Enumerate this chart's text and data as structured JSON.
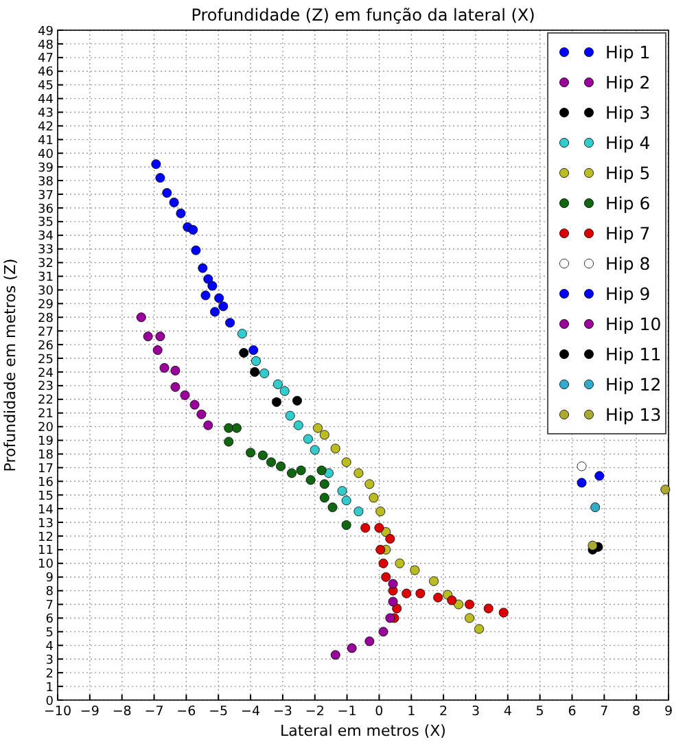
{
  "chart_data": {
    "type": "scatter",
    "title": "Profundidade (Z) em função da lateral (X)",
    "xlabel": "Lateral em metros (X)",
    "ylabel": "Profundidade em metros (Z)",
    "xlim": [
      -10,
      9
    ],
    "ylim": [
      0,
      49
    ],
    "xticks": [
      -10,
      -9,
      -8,
      -7,
      -6,
      -5,
      -4,
      -3,
      -2,
      -1,
      0,
      1,
      2,
      3,
      4,
      5,
      6,
      7,
      8,
      9
    ],
    "yticks": [
      0,
      1,
      2,
      3,
      4,
      5,
      6,
      7,
      8,
      9,
      10,
      11,
      12,
      13,
      14,
      15,
      16,
      17,
      18,
      19,
      20,
      21,
      22,
      23,
      24,
      25,
      26,
      27,
      28,
      29,
      30,
      31,
      32,
      33,
      34,
      35,
      36,
      37,
      38,
      39,
      40,
      41,
      42,
      43,
      44,
      45,
      46,
      47,
      48,
      49
    ],
    "grid": true,
    "legend": "top right",
    "marker": "circle",
    "series": [
      {
        "name": "Hip 1",
        "color": "#0000ff",
        "x": [
          -6.94,
          -6.81,
          -6.6,
          -6.38,
          -6.17,
          -5.96,
          -5.79,
          -5.7,
          -5.49,
          -5.32,
          -5.19,
          -5.4,
          -4.98,
          -5.11,
          -4.85,
          -4.64,
          -3.91
        ],
        "values": [
          39.2,
          38.2,
          37.1,
          36.4,
          35.6,
          34.6,
          34.4,
          32.9,
          31.6,
          30.8,
          30.3,
          29.6,
          29.4,
          28.4,
          28.8,
          27.6,
          25.6
        ]
      },
      {
        "name": "Hip 2",
        "color": "#990099",
        "x": [
          -7.4,
          -7.19,
          -6.81,
          -6.89,
          -6.68,
          -6.34,
          -6.34,
          -6.04,
          -5.74,
          -5.53,
          -5.32
        ],
        "values": [
          28.0,
          26.6,
          26.6,
          25.6,
          24.3,
          24.1,
          22.9,
          22.3,
          21.6,
          20.9,
          20.1
        ]
      },
      {
        "name": "Hip 3",
        "color": "#000000",
        "x": [
          -4.21,
          -3.87,
          -3.19,
          -2.55
        ],
        "values": [
          25.4,
          24.0,
          21.8,
          21.9
        ]
      },
      {
        "name": "Hip 4",
        "color": "#33cccc",
        "x": [
          -4.26,
          -3.83,
          -3.57,
          -3.15,
          -2.94,
          -2.77,
          -2.51,
          -2.21,
          -2.0,
          -1.57,
          -1.15,
          -1.02,
          -0.64
        ],
        "values": [
          26.8,
          24.8,
          23.9,
          23.1,
          22.6,
          20.8,
          20.1,
          19.1,
          18.3,
          16.6,
          15.3,
          14.6,
          13.8
        ]
      },
      {
        "name": "Hip 5",
        "color": "#bbbb22",
        "x": [
          -1.91,
          -1.7,
          -1.36,
          -1.02,
          -0.64,
          -0.3,
          -0.17,
          0.04,
          0.21,
          0.21,
          0.64,
          1.11,
          1.7,
          2.13,
          2.47,
          2.81,
          3.11
        ],
        "values": [
          19.9,
          19.4,
          18.4,
          17.4,
          16.6,
          15.8,
          14.8,
          13.8,
          12.3,
          11.0,
          10.0,
          9.5,
          8.7,
          7.7,
          7.0,
          6.0,
          5.2
        ]
      },
      {
        "name": "Hip 6",
        "color": "#116611",
        "x": [
          -4.68,
          -4.68,
          -4.43,
          -4.0,
          -3.62,
          -3.36,
          -3.06,
          -2.72,
          -2.43,
          -2.13,
          -1.79,
          -1.7,
          -1.7,
          -1.45,
          -1.02
        ],
        "values": [
          19.9,
          18.9,
          19.9,
          18.1,
          17.9,
          17.4,
          17.1,
          16.6,
          16.8,
          16.1,
          16.8,
          15.8,
          14.8,
          14.1,
          12.8
        ]
      },
      {
        "name": "Hip 7",
        "color": "#dd0000",
        "x": [
          -0.43,
          0,
          0.34,
          0.04,
          0.13,
          0.21,
          0.43,
          0.85,
          1.28,
          1.83,
          2.26,
          2.81,
          3.4,
          3.87,
          0.55,
          0.47
        ],
        "values": [
          12.6,
          12.6,
          11.8,
          11.0,
          10.0,
          9.0,
          8.0,
          7.8,
          7.8,
          7.5,
          7.3,
          7.0,
          6.7,
          6.4,
          6.7,
          6.0
        ]
      },
      {
        "name": "Hip 8",
        "color": "#ffffff",
        "x": [
          6.3
        ],
        "values": [
          17.1
        ]
      },
      {
        "name": "Hip 9",
        "color": "#0000ff",
        "x": [
          6.3,
          6.85
        ],
        "values": [
          15.9,
          16.4
        ]
      },
      {
        "name": "Hip 10",
        "color": "#990099",
        "x": [
          -1.36,
          -0.85,
          -0.3,
          0.13,
          0.34,
          0.43,
          0.43
        ],
        "values": [
          3.3,
          3.8,
          4.3,
          5.0,
          6.0,
          7.2,
          8.5
        ]
      },
      {
        "name": "Hip 11",
        "color": "#000000",
        "x": [
          6.81,
          6.64
        ],
        "values": [
          11.2,
          11.0
        ]
      },
      {
        "name": "Hip 12",
        "color": "#33aacc",
        "x": [
          6.72
        ],
        "values": [
          14.1
        ]
      },
      {
        "name": "Hip 13",
        "color": "#aaaa33",
        "x": [
          8.9,
          6.64
        ],
        "values": [
          15.4,
          11.3
        ]
      }
    ]
  }
}
